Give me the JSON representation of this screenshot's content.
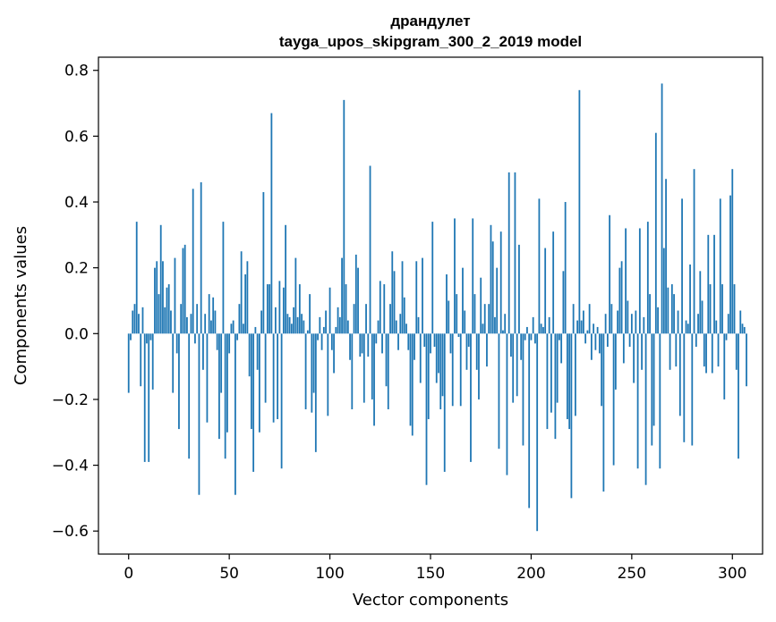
{
  "chart_data": {
    "type": "bar",
    "title": "драндулет",
    "subtitle": "tayga_upos_skipgram_300_2_2019 model",
    "xlabel": "Vector components",
    "ylabel": "Components values",
    "xlim": [
      -15,
      315
    ],
    "ylim": [
      -0.67,
      0.84
    ],
    "xticks": [
      0,
      50,
      100,
      150,
      200,
      250,
      300
    ],
    "xtick_labels": [
      "0",
      "50",
      "100",
      "150",
      "200",
      "250",
      "300"
    ],
    "yticks": [
      -0.6,
      -0.4,
      -0.2,
      0.0,
      0.2,
      0.4,
      0.6,
      0.8
    ],
    "ytick_labels": [
      "−0.6",
      "−0.4",
      "−0.2",
      "0.0",
      "0.2",
      "0.4",
      "0.6",
      "0.8"
    ],
    "bar_color": "#1f77b4",
    "grid": false,
    "values": [
      -0.18,
      -0.02,
      0.07,
      0.09,
      0.34,
      0.06,
      -0.16,
      0.08,
      -0.39,
      -0.03,
      -0.39,
      -0.02,
      -0.17,
      0.2,
      0.22,
      0.12,
      0.33,
      0.22,
      0.08,
      0.14,
      0.15,
      0.07,
      -0.18,
      0.23,
      -0.06,
      -0.29,
      0.09,
      0.26,
      0.27,
      0.05,
      -0.38,
      0.06,
      0.44,
      -0.03,
      0.09,
      -0.49,
      0.46,
      -0.11,
      0.06,
      -0.27,
      0.12,
      0.04,
      0.11,
      0.07,
      -0.05,
      -0.32,
      -0.18,
      0.34,
      -0.38,
      -0.3,
      -0.06,
      0.03,
      0.04,
      -0.49,
      -0.02,
      0.09,
      0.25,
      0.03,
      0.18,
      0.22,
      -0.13,
      -0.29,
      -0.42,
      0.02,
      -0.11,
      -0.3,
      0.07,
      0.43,
      -0.21,
      0.15,
      0.15,
      0.67,
      -0.27,
      0.08,
      -0.26,
      0.16,
      -0.41,
      0.14,
      0.33,
      0.06,
      0.05,
      0.03,
      0.08,
      0.23,
      0.05,
      0.15,
      0.06,
      0.04,
      -0.23,
      0.01,
      0.12,
      -0.24,
      -0.18,
      -0.36,
      -0.02,
      0.05,
      -0.05,
      0.02,
      0.07,
      -0.25,
      0.14,
      -0.05,
      -0.12,
      0.02,
      0.08,
      0.05,
      0.23,
      0.71,
      0.15,
      0.04,
      -0.08,
      -0.23,
      0.09,
      0.24,
      0.2,
      -0.07,
      -0.06,
      -0.21,
      0.09,
      -0.07,
      0.51,
      -0.2,
      -0.28,
      -0.03,
      0.04,
      0.16,
      -0.06,
      0.15,
      -0.16,
      -0.23,
      0.09,
      0.25,
      0.19,
      0.04,
      -0.05,
      0.06,
      0.22,
      0.11,
      0.03,
      -0.05,
      -0.28,
      -0.31,
      -0.08,
      0.22,
      0.05,
      -0.15,
      0.23,
      -0.04,
      -0.46,
      -0.26,
      -0.06,
      0.34,
      -0.04,
      -0.15,
      -0.12,
      -0.23,
      -0.19,
      -0.42,
      0.18,
      0.1,
      -0.06,
      -0.22,
      0.35,
      0.12,
      -0.01,
      -0.22,
      0.2,
      0.07,
      -0.11,
      -0.04,
      -0.39,
      0.35,
      0.12,
      -0.11,
      -0.2,
      0.17,
      0.03,
      0.09,
      -0.1,
      0.09,
      0.33,
      0.28,
      0.05,
      0.2,
      -0.35,
      0.31,
      0.01,
      0.06,
      -0.43,
      0.49,
      -0.07,
      -0.21,
      0.49,
      -0.19,
      0.27,
      -0.08,
      -0.34,
      -0.02,
      0.02,
      -0.53,
      -0.02,
      0.05,
      -0.03,
      -0.6,
      0.41,
      0.03,
      0.02,
      0.26,
      -0.29,
      0.05,
      -0.24,
      0.31,
      -0.32,
      -0.21,
      -0.02,
      -0.09,
      0.19,
      0.4,
      -0.26,
      -0.29,
      -0.5,
      0.09,
      -0.25,
      0.04,
      0.74,
      0.04,
      0.07,
      -0.03,
      0.01,
      0.09,
      -0.08,
      0.03,
      -0.05,
      0.02,
      -0.06,
      -0.22,
      -0.48,
      0.06,
      -0.04,
      0.36,
      0.09,
      -0.4,
      -0.17,
      0.07,
      0.2,
      0.22,
      -0.09,
      0.32,
      0.1,
      -0.04,
      0.06,
      -0.15,
      0.07,
      -0.41,
      0.32,
      -0.11,
      0.05,
      -0.46,
      0.34,
      0.12,
      -0.34,
      -0.28,
      0.61,
      0.08,
      -0.41,
      0.76,
      0.26,
      0.47,
      0.14,
      -0.11,
      0.15,
      0.12,
      -0.1,
      0.07,
      -0.25,
      0.41,
      -0.33,
      0.04,
      0.03,
      0.21,
      -0.34,
      0.5,
      -0.04,
      0.06,
      0.19,
      0.1,
      -0.1,
      -0.12,
      0.3,
      0.15,
      -0.12,
      0.3,
      0.04,
      -0.1,
      0.41,
      0.15,
      -0.2,
      -0.02,
      0.06,
      0.42,
      0.5,
      0.15,
      -0.11,
      -0.38,
      0.07,
      0.03,
      0.02,
      -0.16
    ]
  }
}
